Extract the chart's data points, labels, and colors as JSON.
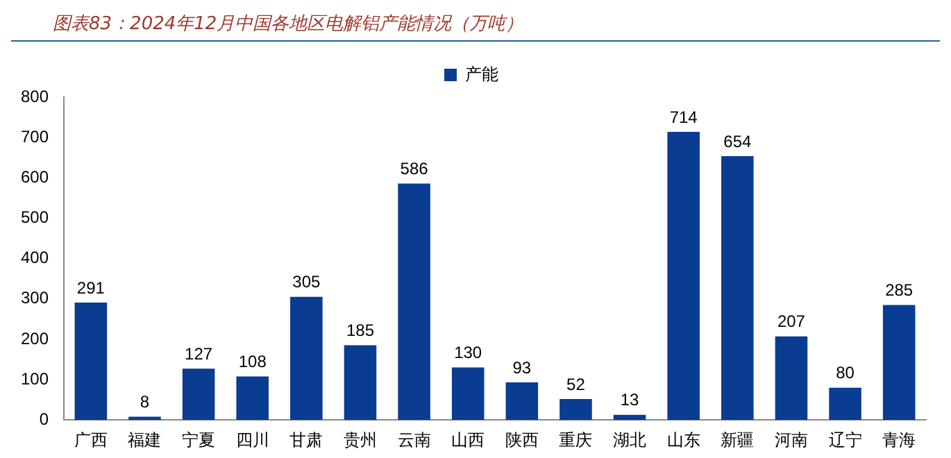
{
  "chart_data": {
    "type": "bar",
    "title": "图表83：2024年12月中国各地区电解铝产能情况（万吨）",
    "categories": [
      "广西",
      "福建",
      "宁夏",
      "四川",
      "甘肃",
      "贵州",
      "云南",
      "山西",
      "陕西",
      "重庆",
      "湖北",
      "山东",
      "新疆",
      "河南",
      "辽宁",
      "青海"
    ],
    "series": [
      {
        "name": "产能",
        "color": "#0a3d91",
        "values": [
          291,
          8,
          127,
          108,
          305,
          185,
          586,
          130,
          93,
          52,
          13,
          714,
          654,
          207,
          80,
          285
        ]
      }
    ],
    "ylim": [
      0,
      800
    ],
    "yticks": [
      0,
      100,
      200,
      300,
      400,
      500,
      600,
      700,
      800
    ],
    "grid": false,
    "legend": "top",
    "data_labels": true
  }
}
